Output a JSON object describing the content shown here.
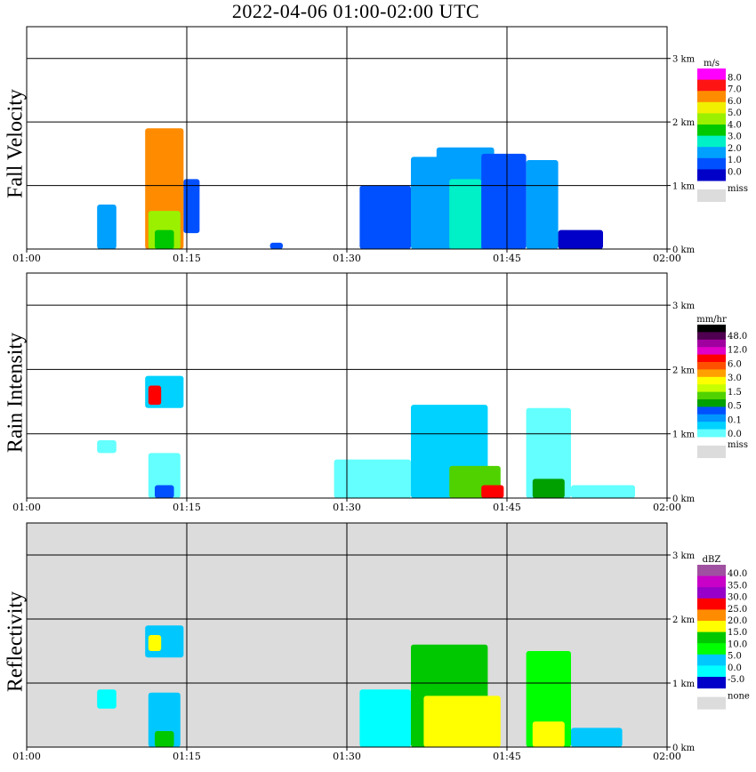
{
  "title": "2022-04-06  01:00-02:00 UTC",
  "colors": {
    "missing": "#dcdcdc",
    "grid": "#000000"
  },
  "chart_data": [
    {
      "type": "heatmap",
      "ylabel": "Fall Velocity",
      "x_ticks": [
        "01:00",
        "01:15",
        "01:30",
        "01:45",
        "02:00"
      ],
      "y_ticks": [
        "3 km",
        "2 km",
        "1 km",
        "0 km"
      ],
      "xlim": [
        "01:00",
        "02:00"
      ],
      "ylim_km": [
        0,
        3.5
      ],
      "background": "white",
      "legend": {
        "unit": "m/s",
        "labels": [
          "8.0",
          "7.0",
          "6.0",
          "5.0",
          "4.0",
          "3.0",
          "2.0",
          "1.0",
          "0.0"
        ],
        "colors": [
          "#ff00ff",
          "#ff1414",
          "#ff8c00",
          "#f0f000",
          "#9bf000",
          "#00c800",
          "#00f0c8",
          "#00a0ff",
          "#0050ff",
          "#0000c8"
        ],
        "missing_label": "miss"
      }
    },
    {
      "type": "heatmap",
      "ylabel": "Rain Intensity",
      "x_ticks": [
        "01:00",
        "01:15",
        "01:30",
        "01:45",
        "02:00"
      ],
      "y_ticks": [
        "3 km",
        "2 km",
        "1 km",
        "0 km"
      ],
      "xlim": [
        "01:00",
        "02:00"
      ],
      "ylim_km": [
        0,
        3.5
      ],
      "background": "white",
      "legend": {
        "unit": "mm/hr",
        "labels": [
          "48.0",
          "12.0",
          "6.0",
          "3.0",
          "1.5",
          "0.5",
          "0.1",
          "0.0"
        ],
        "colors": [
          "#000000",
          "#500050",
          "#a000a0",
          "#e000c8",
          "#ff0000",
          "#ff5000",
          "#ffa000",
          "#ffff00",
          "#c8ff00",
          "#50d200",
          "#00a000",
          "#0050ff",
          "#0096ff",
          "#00d2ff",
          "#64ffff"
        ],
        "missing_label": "miss"
      }
    },
    {
      "type": "heatmap",
      "ylabel": "Reflectivity",
      "x_ticks": [
        "01:00",
        "01:15",
        "01:30",
        "01:45",
        "02:00"
      ],
      "y_ticks": [
        "3 km",
        "2 km",
        "1 km",
        "0 km"
      ],
      "xlim": [
        "01:00",
        "02:00"
      ],
      "ylim_km": [
        0,
        3.5
      ],
      "background": "gray",
      "legend": {
        "unit": "dBZ",
        "labels": [
          "40.0",
          "35.0",
          "30.0",
          "25.0",
          "20.0",
          "15.0",
          "10.0",
          "5.0",
          "0.0",
          "-5.0"
        ],
        "colors": [
          "#a050a0",
          "#c800c8",
          "#9600c8",
          "#ff0000",
          "#ff8c00",
          "#ffff00",
          "#00c800",
          "#00ff00",
          "#00c8ff",
          "#00ffff",
          "#0000c8"
        ],
        "missing_label": "none"
      }
    }
  ]
}
